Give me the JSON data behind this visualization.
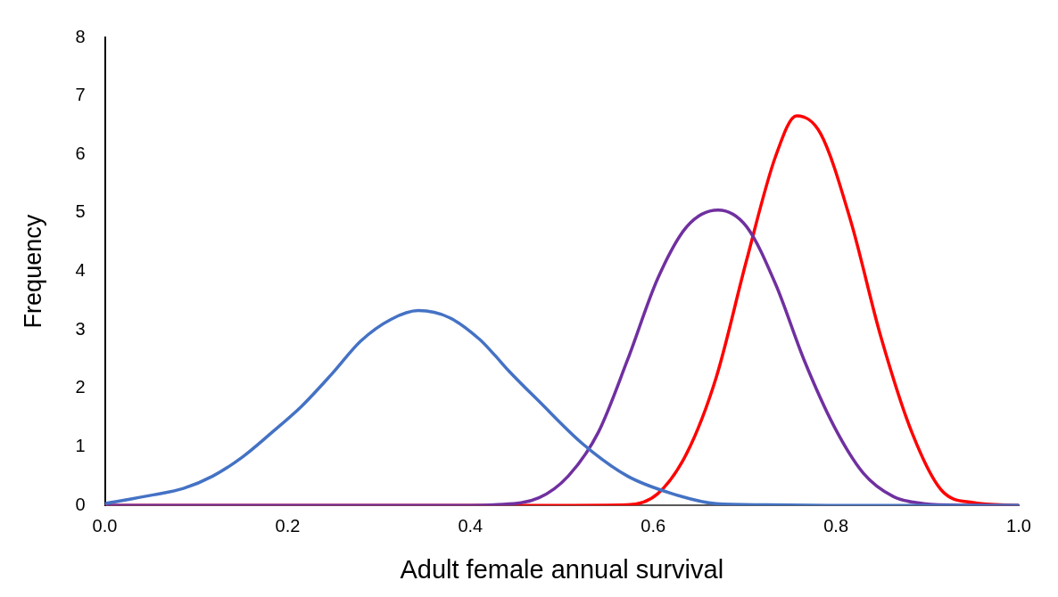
{
  "chart_data": {
    "type": "line",
    "xlabel": "Adult female annual survival",
    "ylabel": "Frequency",
    "xlim": [
      0,
      1
    ],
    "ylim": [
      0,
      8
    ],
    "xticks": [
      {
        "value": 0,
        "label": "0.0"
      },
      {
        "value": 0.2,
        "label": "0.2"
      },
      {
        "value": 0.4,
        "label": "0.4"
      },
      {
        "value": 0.6,
        "label": "0.6"
      },
      {
        "value": 0.8,
        "label": "0.8"
      },
      {
        "value": 1,
        "label": "1.0"
      }
    ],
    "yticks": [
      0,
      1,
      2,
      3,
      4,
      5,
      6,
      7,
      8
    ],
    "marker": "none",
    "series": [
      {
        "color": "#4472c4",
        "x": [
          0,
          0.053,
          0.086,
          0.118,
          0.15,
          0.183,
          0.215,
          0.248,
          0.28,
          0.313,
          0.343,
          0.377,
          0.41,
          0.426,
          0.442,
          0.475,
          0.523,
          0.572,
          0.621,
          0.669,
          0.72,
          0.8,
          0.9,
          1
        ],
        "values": [
          0.03,
          0.18,
          0.29,
          0.5,
          0.82,
          1.25,
          1.69,
          2.24,
          2.81,
          3.18,
          3.33,
          3.21,
          2.84,
          2.58,
          2.3,
          1.78,
          1.05,
          0.5,
          0.2,
          0.03,
          0.01,
          0,
          0,
          0
        ]
      },
      {
        "color": "#7030a0",
        "x": [
          0,
          0.2,
          0.4,
          0.426,
          0.475,
          0.507,
          0.54,
          0.572,
          0.605,
          0.637,
          0.671,
          0.702,
          0.734,
          0.765,
          0.798,
          0.83,
          0.863,
          0.896,
          0.912,
          1
        ],
        "values": [
          0,
          0,
          0,
          0.01,
          0.13,
          0.5,
          1.25,
          2.49,
          3.88,
          4.77,
          5.05,
          4.77,
          3.78,
          2.49,
          1.35,
          0.55,
          0.15,
          0.03,
          0.01,
          0
        ]
      },
      {
        "color": "#ff0000",
        "x": [
          0,
          0.3,
          0.5,
          0.572,
          0.605,
          0.637,
          0.669,
          0.702,
          0.734,
          0.757,
          0.783,
          0.816,
          0.849,
          0.883,
          0.916,
          0.95,
          1
        ],
        "values": [
          0,
          0,
          0,
          0.01,
          0.2,
          0.9,
          2.19,
          4.18,
          5.97,
          6.66,
          6.36,
          4.87,
          2.89,
          1.25,
          0.25,
          0.05,
          0
        ]
      }
    ]
  }
}
